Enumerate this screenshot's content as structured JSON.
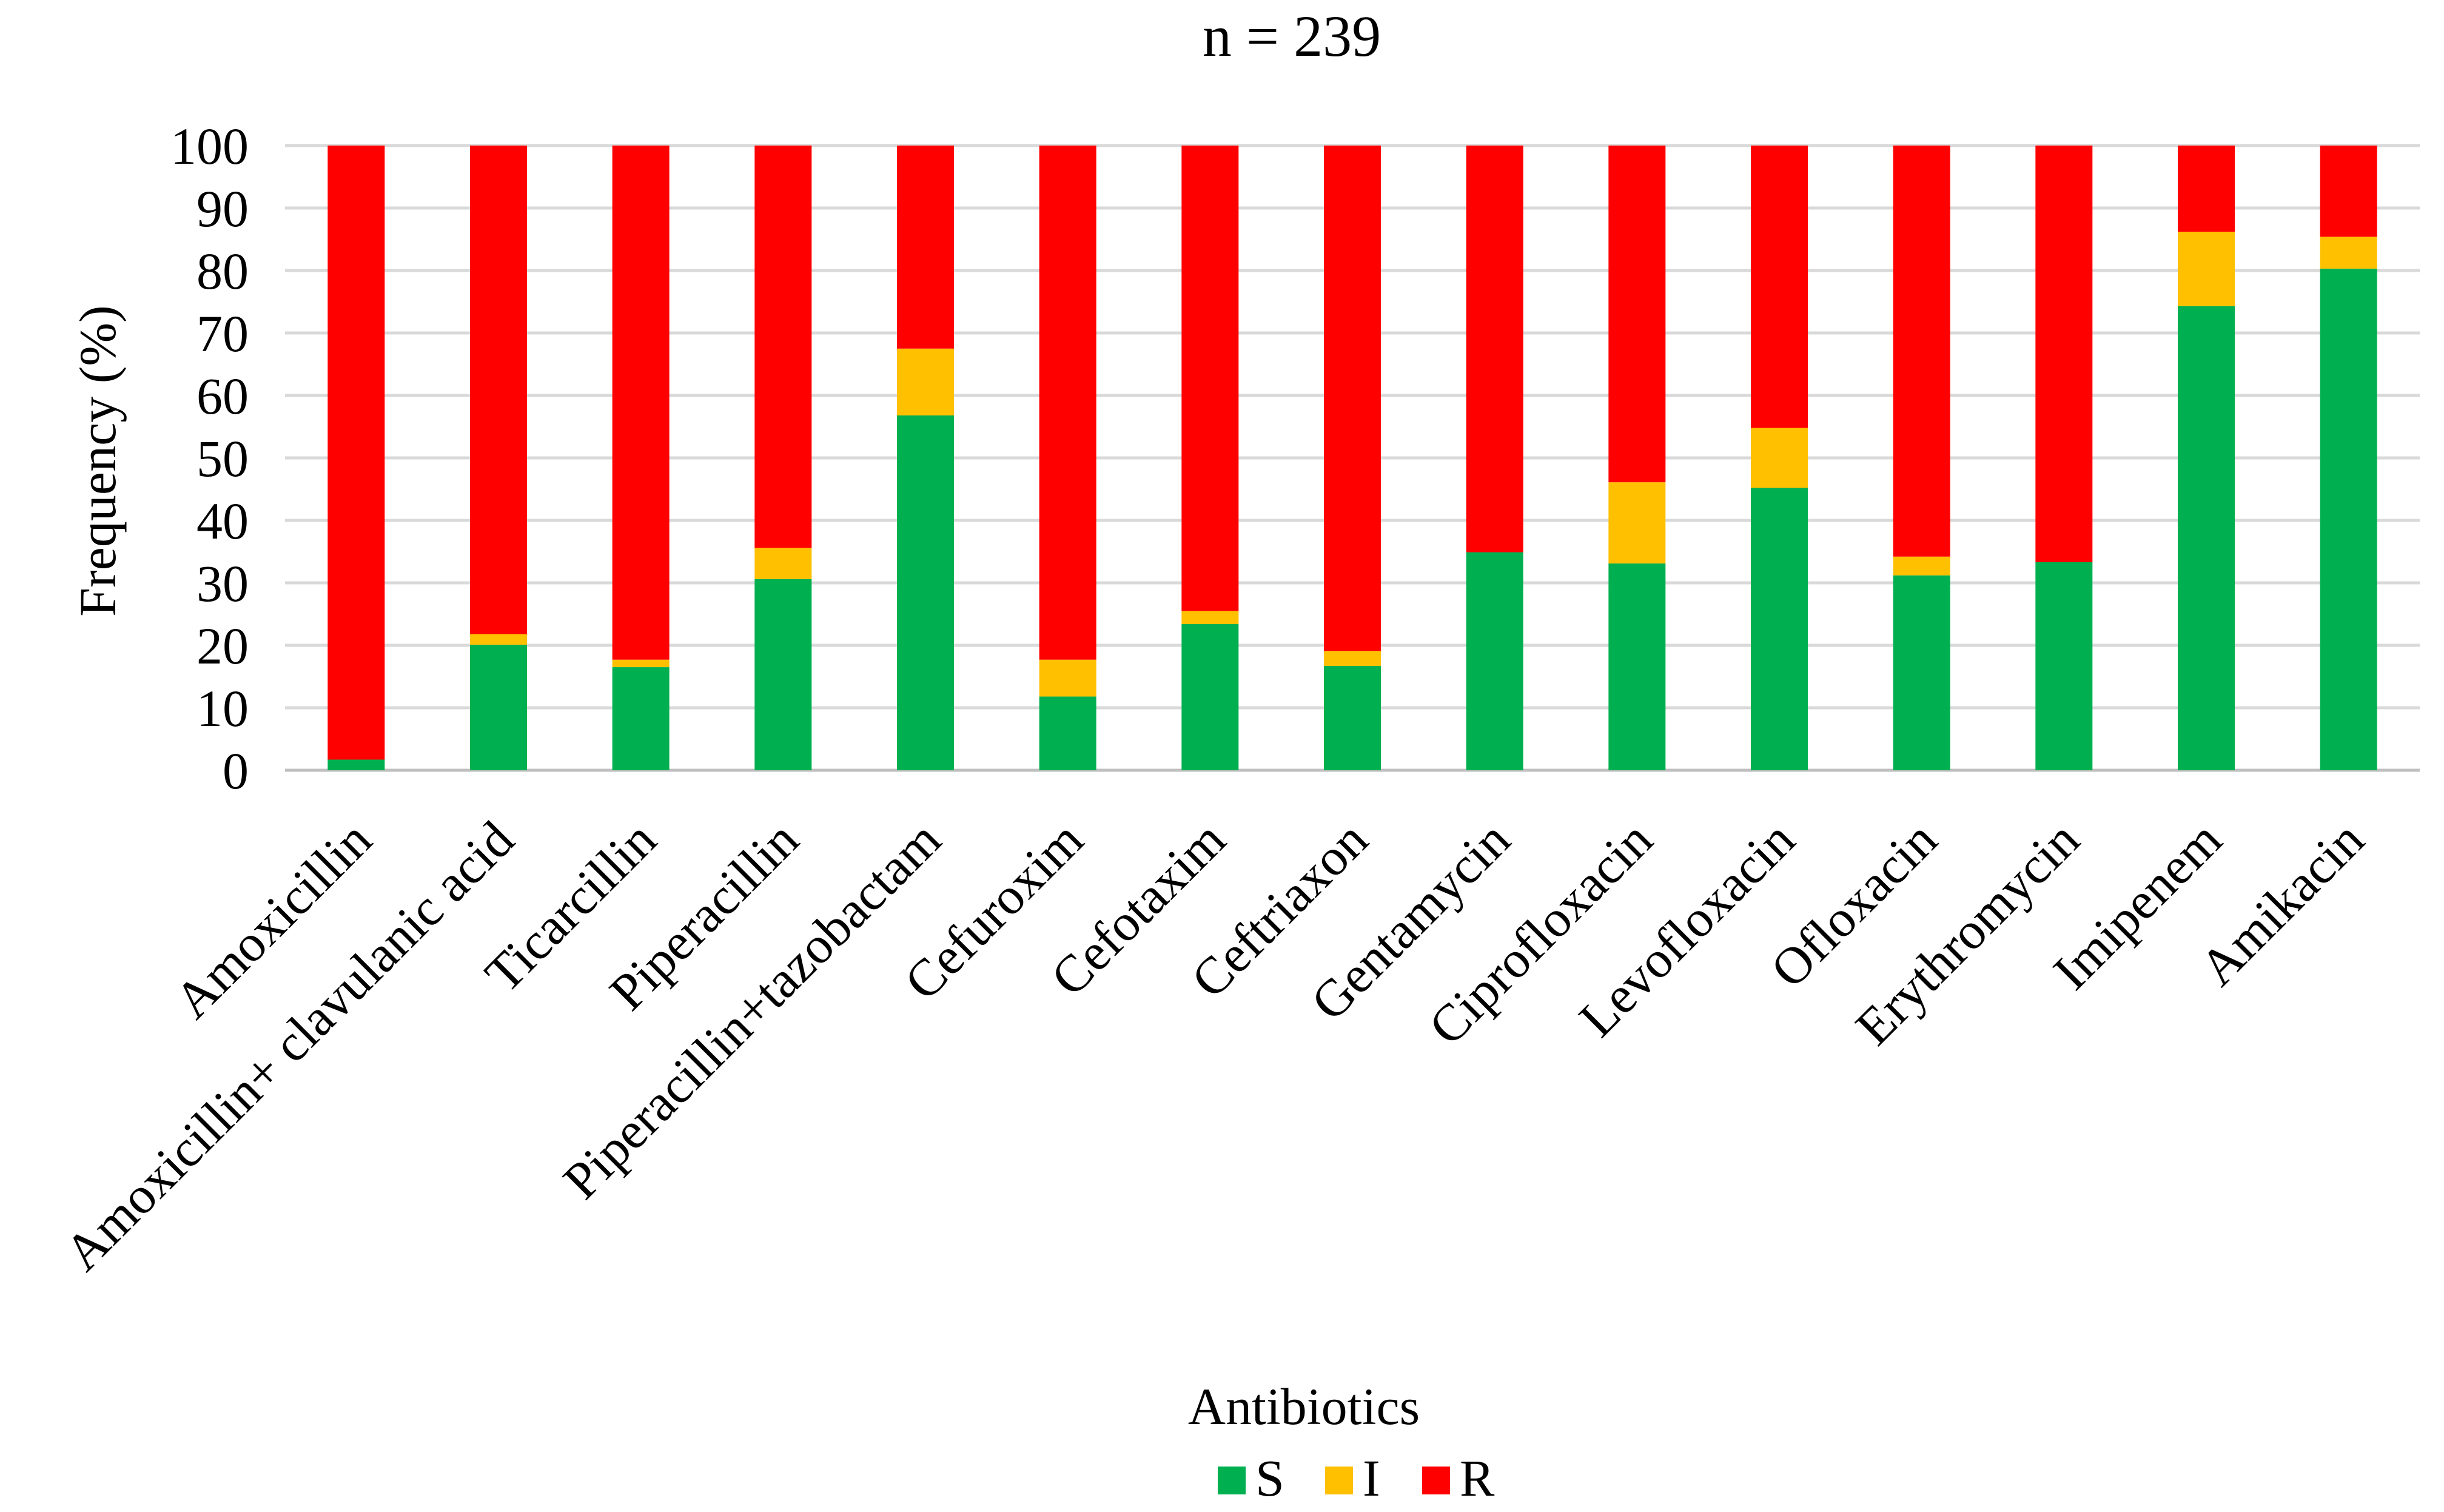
{
  "chart_data": {
    "type": "bar",
    "stacked": true,
    "title": "n = 239",
    "xlabel": "Antibiotics",
    "ylabel": "Frequency (%)",
    "ylim": [
      0,
      100
    ],
    "yticks": [
      0,
      10,
      20,
      30,
      40,
      50,
      60,
      70,
      80,
      90,
      100
    ],
    "grid": true,
    "legend_position": "bottom",
    "categories": [
      "Amoxicillin",
      "Amoxicillin+ clavulanic acid",
      "Ticarcillin",
      "Piperacillin",
      "Piperacillin+tazobactam",
      "Cefuroxim",
      "Cefotaxim",
      "Ceftriaxon",
      "Gentamycin",
      "Ciprofloxacin",
      "Levofloxacin",
      "Ofloxacin",
      "Erythromycin",
      "Imipenem",
      "Amikacin"
    ],
    "series": [
      {
        "name": "S",
        "color": "#00b050",
        "values": [
          1.7,
          20.1,
          16.5,
          30.6,
          56.8,
          11.8,
          23.4,
          16.7,
          34.9,
          33.1,
          45.2,
          31.2,
          33.3,
          74.3,
          80.3
        ]
      },
      {
        "name": "I",
        "color": "#ffc000",
        "values": [
          0.0,
          1.7,
          1.2,
          5.0,
          10.7,
          5.9,
          2.1,
          2.4,
          0.0,
          13.0,
          9.6,
          3.0,
          0.0,
          11.9,
          5.1
        ]
      },
      {
        "name": "R",
        "color": "#ff0000",
        "values": [
          98.3,
          78.2,
          82.3,
          64.4,
          32.5,
          82.3,
          74.5,
          80.9,
          65.1,
          53.9,
          45.2,
          65.8,
          66.7,
          13.8,
          14.6
        ]
      }
    ]
  }
}
